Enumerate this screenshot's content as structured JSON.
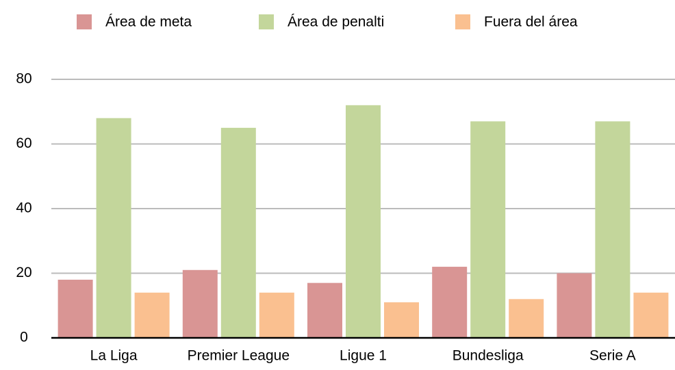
{
  "chart_data": {
    "type": "bar",
    "categories": [
      "La Liga",
      "Premier League",
      "Ligue 1",
      "Bundesliga",
      "Serie A"
    ],
    "series": [
      {
        "name": "Área de meta",
        "color": "#d99594",
        "values": [
          18,
          21,
          17,
          22,
          20
        ]
      },
      {
        "name": "Área de penalti",
        "color": "#c3d69b",
        "values": [
          68,
          65,
          72,
          67,
          67
        ]
      },
      {
        "name": "Fuera del área",
        "color": "#fac090",
        "values": [
          14,
          14,
          11,
          12,
          14
        ]
      }
    ],
    "ylim": [
      0,
      80
    ],
    "yticks": [
      0,
      20,
      40,
      60,
      80
    ],
    "grid": true,
    "legend": "top"
  }
}
